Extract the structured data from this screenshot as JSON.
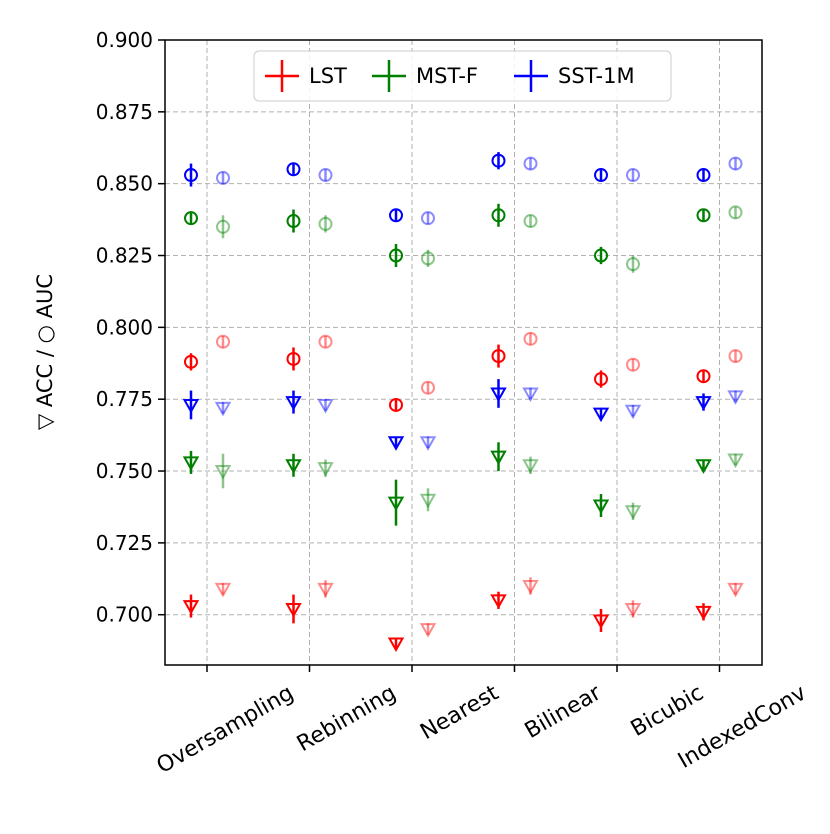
{
  "chart_data": {
    "type": "scatter",
    "ylabel": "▽ ACC / ○ AUC",
    "xlabel": "",
    "ylim": [
      0.6825,
      0.9
    ],
    "yticks": [
      0.7,
      0.725,
      0.75,
      0.775,
      0.8,
      0.825,
      0.85,
      0.875,
      0.9
    ],
    "ytick_labels": [
      "0.700",
      "0.725",
      "0.750",
      "0.775",
      "0.800",
      "0.825",
      "0.850",
      "0.875",
      "0.900"
    ],
    "categories": [
      "Oversampling",
      "Rebinning",
      "Nearest",
      "Bilinear",
      "Bicubic",
      "IndexedConv"
    ],
    "grid": true,
    "legend": {
      "position": "top-center",
      "entries": [
        "LST",
        "MST-F",
        "SST-1M"
      ]
    },
    "note": "For each method: left markers = solid (opaque), right markers = faded (semi-transparent). Triangle = ACC, circle = AUC. err = half-length of vertical error bar.",
    "series": [
      {
        "name": "LST",
        "color": "#ff0000",
        "auc_solid": [
          0.788,
          0.789,
          0.773,
          0.79,
          0.782,
          0.783
        ],
        "auc_solid_err": [
          0.003,
          0.004,
          0.002,
          0.004,
          0.003,
          0.002
        ],
        "auc_faded": [
          0.795,
          0.795,
          0.779,
          0.796,
          0.787,
          0.79
        ],
        "auc_faded_err": [
          0.002,
          0.002,
          0.002,
          0.002,
          0.002,
          0.002
        ],
        "acc_solid": [
          0.703,
          0.702,
          0.69,
          0.705,
          0.698,
          0.701
        ],
        "acc_solid_err": [
          0.004,
          0.005,
          0.002,
          0.003,
          0.004,
          0.003
        ],
        "acc_faded": [
          0.709,
          0.709,
          0.695,
          0.71,
          0.702,
          0.709
        ],
        "acc_faded_err": [
          0.002,
          0.003,
          0.002,
          0.003,
          0.003,
          0.002
        ]
      },
      {
        "name": "MST-F",
        "color": "#008000",
        "auc_solid": [
          0.838,
          0.837,
          0.825,
          0.839,
          0.825,
          0.839
        ],
        "auc_solid_err": [
          0.002,
          0.004,
          0.004,
          0.004,
          0.003,
          0.002
        ],
        "auc_faded": [
          0.835,
          0.836,
          0.824,
          0.837,
          0.822,
          0.84
        ],
        "auc_faded_err": [
          0.004,
          0.003,
          0.003,
          0.002,
          0.003,
          0.002
        ],
        "acc_solid": [
          0.753,
          0.752,
          0.739,
          0.755,
          0.738,
          0.752
        ],
        "acc_solid_err": [
          0.004,
          0.004,
          0.008,
          0.005,
          0.004,
          0.002
        ],
        "acc_faded": [
          0.75,
          0.751,
          0.74,
          0.752,
          0.736,
          0.754
        ],
        "acc_faded_err": [
          0.006,
          0.003,
          0.004,
          0.003,
          0.003,
          0.002
        ]
      },
      {
        "name": "SST-1M",
        "color": "#0000ff",
        "auc_solid": [
          0.853,
          0.855,
          0.839,
          0.858,
          0.853,
          0.853
        ],
        "auc_solid_err": [
          0.004,
          0.002,
          0.002,
          0.003,
          0.002,
          0.002
        ],
        "auc_faded": [
          0.852,
          0.853,
          0.838,
          0.857,
          0.853,
          0.857
        ],
        "auc_faded_err": [
          0.002,
          0.002,
          0.002,
          0.002,
          0.002,
          0.002
        ],
        "acc_solid": [
          0.773,
          0.774,
          0.76,
          0.777,
          0.77,
          0.774
        ],
        "acc_solid_err": [
          0.005,
          0.004,
          0.002,
          0.005,
          0.002,
          0.003
        ],
        "acc_faded": [
          0.772,
          0.773,
          0.76,
          0.777,
          0.771,
          0.776
        ],
        "acc_faded_err": [
          0.002,
          0.002,
          0.002,
          0.002,
          0.002,
          0.002
        ]
      }
    ]
  }
}
